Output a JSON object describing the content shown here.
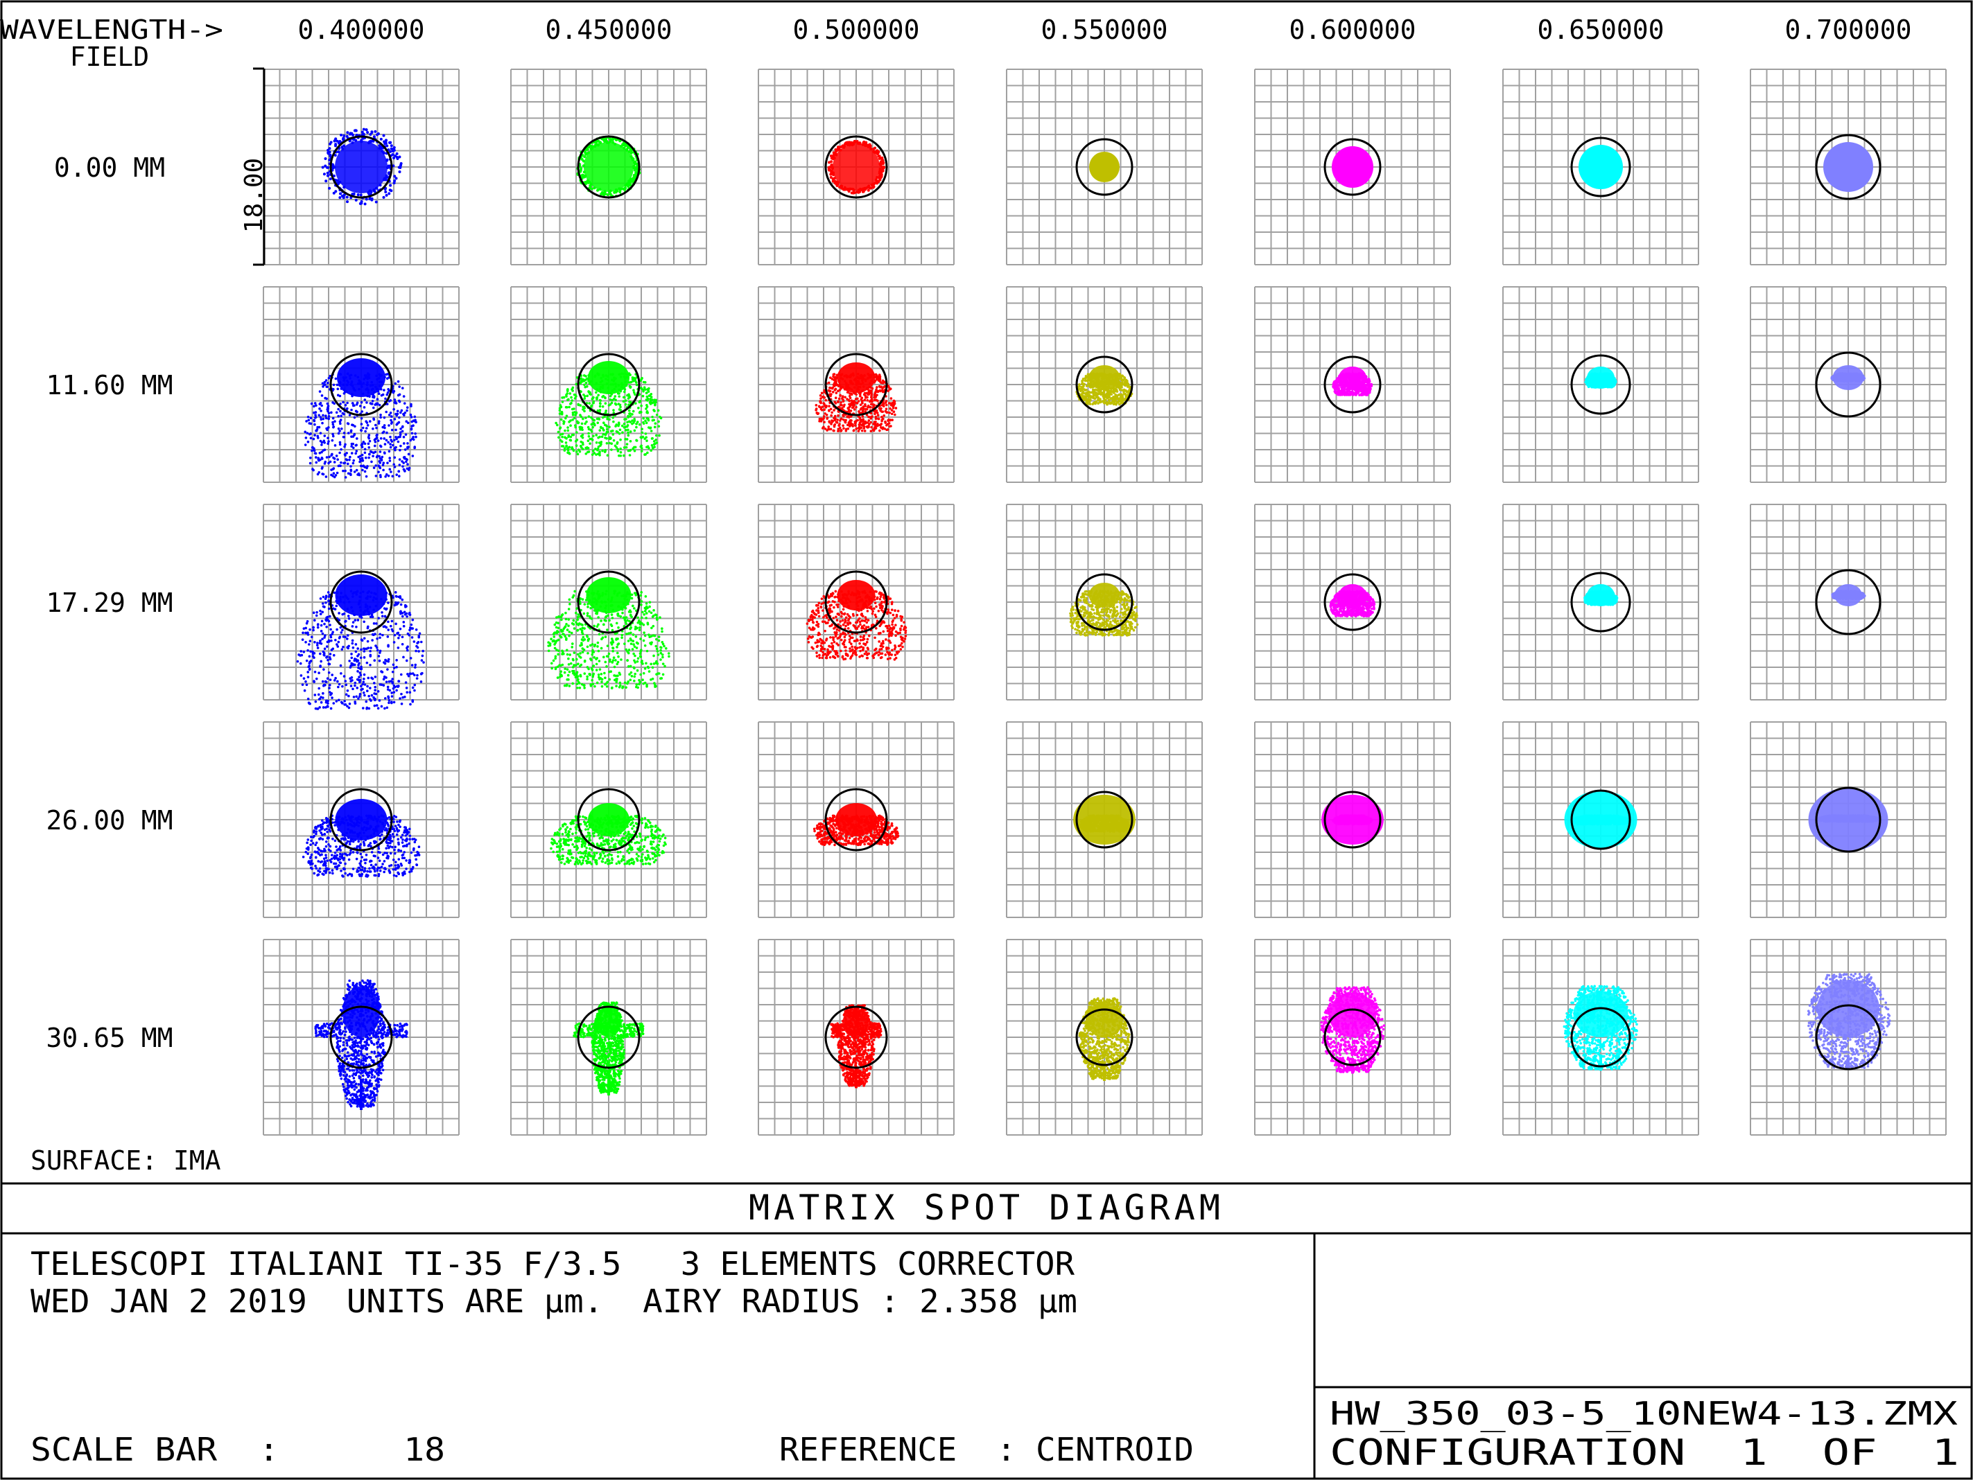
{
  "header": {
    "wavelength_label": "WAVELENGTH->",
    "field_label": "FIELD",
    "wavelengths": [
      "0.400000",
      "0.450000",
      "0.500000",
      "0.550000",
      "0.600000",
      "0.650000",
      "0.700000"
    ]
  },
  "fields": [
    "0.00 MM",
    "11.60 MM",
    "17.29 MM",
    "26.00 MM",
    "30.65 MM"
  ],
  "scale_bar_label": "18.00",
  "surface_label": "SURFACE: IMA",
  "diagram_title": "MATRIX SPOT DIAGRAM",
  "info": {
    "line1": "TELESCOPI ITALIANI TI-35 F/3.5   3 ELEMENTS CORRECTOR",
    "line2": "WED JAN 2 2019  UNITS ARE µm.  AIRY RADIUS : 2.358 µm",
    "scale_bar": "SCALE BAR  :      18",
    "reference": "REFERENCE  : CENTROID"
  },
  "file": {
    "name": "HW_350_03-5_10NEW4-13.ZMX",
    "configuration": "CONFIGURATION  1  OF  1"
  },
  "colors": {
    "wavelength_colors": [
      "#0000ff",
      "#00ff00",
      "#ff0000",
      "#bfbf00",
      "#ff00ff",
      "#00ffff",
      "#8080ff"
    ],
    "grid": "#a0a0a0",
    "frame": "#000000",
    "airy_circle": "#000000"
  },
  "airy_circle_radius_um": [
    2.358,
    2.358,
    2.358,
    2.358,
    2.358,
    2.358,
    2.358
  ]
}
